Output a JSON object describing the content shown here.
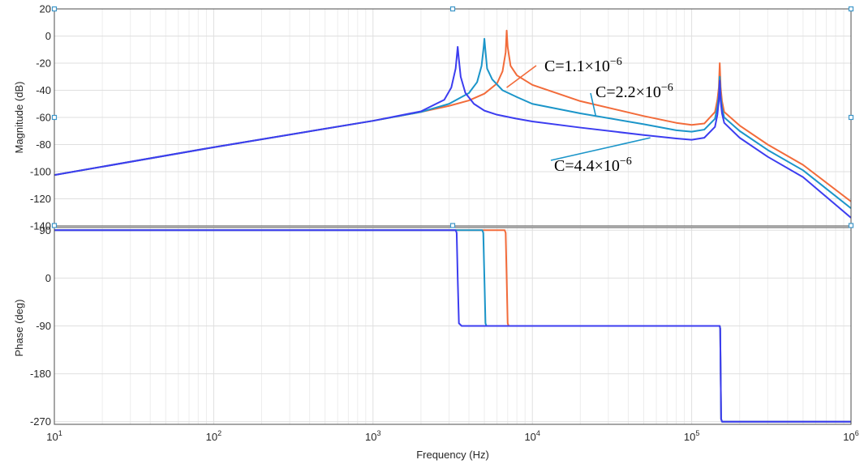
{
  "chart_data": [
    {
      "type": "line",
      "panel": "magnitude",
      "xscale": "log",
      "xlim": [
        10,
        1000000
      ],
      "ylim": [
        -140,
        20
      ],
      "ylabel": "Magnitude (dB)",
      "y_ticks": [
        "20",
        "0",
        "-20",
        "-40",
        "-60",
        "-80",
        "-100",
        "-120",
        "-140"
      ],
      "grid": true,
      "series": [
        {
          "name": "C=1.1×10⁻⁶",
          "color": "#f26b3a",
          "x": [
            10,
            100,
            1000,
            2000,
            3000,
            4000,
            5000,
            6000,
            6500,
            6800,
            6900,
            7000,
            7300,
            8000,
            10000,
            20000,
            50000,
            80000,
            100000,
            120000,
            140000,
            145000,
            148000,
            150000,
            152000,
            155000,
            160000,
            200000,
            300000,
            500000,
            1000000
          ],
          "y": [
            -102.5,
            -82,
            -62.5,
            -56,
            -51.5,
            -47.5,
            -42.5,
            -35,
            -26,
            -12,
            4,
            -8,
            -22,
            -29,
            -36,
            -48,
            -59,
            -64,
            -65.5,
            -64.5,
            -56,
            -47,
            -38,
            -20,
            -38,
            -48,
            -56,
            -66,
            -80,
            -95,
            -122
          ]
        },
        {
          "name": "C=2.2×10⁻⁶",
          "color": "#1b95c9",
          "x": [
            10,
            100,
            1000,
            2000,
            3000,
            4000,
            4500,
            4800,
            4950,
            5000,
            5050,
            5200,
            5600,
            6500,
            8000,
            10000,
            20000,
            50000,
            80000,
            100000,
            120000,
            140000,
            145000,
            148000,
            150000,
            152000,
            155000,
            160000,
            200000,
            300000,
            500000,
            1000000
          ],
          "y": [
            -102.5,
            -82,
            -62.5,
            -56,
            -50,
            -42,
            -34,
            -22,
            -8,
            -2,
            -8,
            -24,
            -32,
            -40,
            -45,
            -50,
            -57,
            -65,
            -69.5,
            -70.5,
            -69,
            -61,
            -52,
            -44,
            -30,
            -44,
            -53,
            -60,
            -70,
            -84,
            -99,
            -127
          ]
        },
        {
          "name": "C=4.4×10⁻⁶",
          "color": "#3c3df0",
          "x": [
            10,
            100,
            1000,
            2000,
            2800,
            3100,
            3300,
            3350,
            3400,
            3450,
            3550,
            3800,
            4300,
            5000,
            6000,
            8000,
            10000,
            20000,
            50000,
            80000,
            100000,
            120000,
            140000,
            145000,
            148000,
            150000,
            152000,
            155000,
            160000,
            200000,
            300000,
            500000,
            1000000
          ],
          "y": [
            -102.5,
            -82,
            -62.5,
            -55.5,
            -47,
            -38,
            -24,
            -16,
            -8,
            -16,
            -30,
            -42,
            -50,
            -55,
            -58,
            -61,
            -63,
            -67.5,
            -73,
            -75.5,
            -76.5,
            -75,
            -67,
            -58,
            -48,
            -33,
            -48,
            -57,
            -64,
            -75,
            -89,
            -104,
            -134
          ]
        }
      ],
      "annotations": [
        {
          "base": "C=1.1×10",
          "exp": "−6",
          "color": "#f26b3a",
          "arrow_to": [
            6900,
            -38
          ]
        },
        {
          "base": "C=2.2×10",
          "exp": "−6",
          "color": "#1b95c9",
          "arrow_to": [
            25000,
            -59
          ]
        },
        {
          "base": "C=4.4×10",
          "exp": "−6",
          "color": "#1b95c9",
          "arrow_to": [
            55000,
            -75
          ]
        }
      ]
    },
    {
      "type": "line",
      "panel": "phase",
      "xscale": "log",
      "xlim": [
        10,
        1000000
      ],
      "ylim": [
        -275,
        95
      ],
      "ylabel": "Phase (deg)",
      "xlabel": "Frequency  (Hz)",
      "y_ticks": [
        90,
        0,
        -90,
        -180,
        -270
      ],
      "x_ticks": [
        {
          "base": "10",
          "exp": "1"
        },
        {
          "base": "10",
          "exp": "2"
        },
        {
          "base": "10",
          "exp": "3"
        },
        {
          "base": "10",
          "exp": "4"
        },
        {
          "base": "10",
          "exp": "5"
        },
        {
          "base": "10",
          "exp": "6"
        }
      ],
      "grid": true,
      "series": [
        {
          "name": "C=1.1×10⁻⁶",
          "color": "#f26b3a",
          "x": [
            10,
            6700,
            6800,
            6900,
            7000,
            7100,
            150000,
            151000,
            152000,
            153000,
            155000,
            1000000
          ],
          "y": [
            90,
            90,
            85,
            0,
            -85,
            -90,
            -90,
            -95,
            -180,
            -265,
            -270,
            -270
          ]
        },
        {
          "name": "C=2.2×10⁻⁶",
          "color": "#1b95c9",
          "x": [
            10,
            4850,
            4920,
            5000,
            5080,
            5150,
            150000,
            151000,
            152000,
            153000,
            155000,
            1000000
          ],
          "y": [
            90,
            90,
            85,
            0,
            -85,
            -90,
            -90,
            -95,
            -180,
            -265,
            -270,
            -270
          ]
        },
        {
          "name": "C=4.4×10⁻⁶",
          "color": "#3c3df0",
          "x": [
            10,
            3300,
            3350,
            3400,
            3460,
            3600,
            150000,
            151000,
            152000,
            153000,
            155000,
            1000000
          ],
          "y": [
            90,
            90,
            85,
            0,
            -85,
            -90,
            -90,
            -95,
            -180,
            -265,
            -270,
            -270
          ]
        }
      ]
    }
  ]
}
